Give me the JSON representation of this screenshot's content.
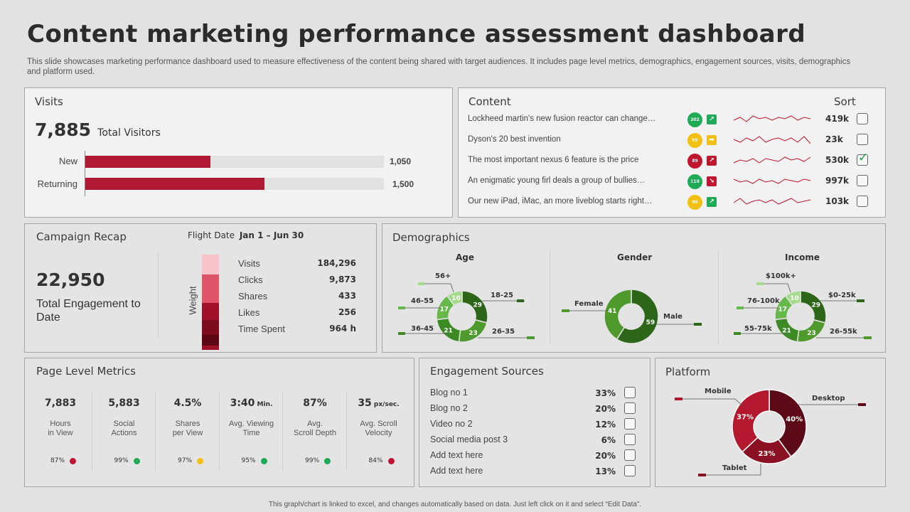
{
  "page": {
    "title": "Content marketing performance assessment dashboard",
    "subtitle": "This slide showcases marketing performance dashboard used to measure effectiveness of the content being shared with target audiences. It includes page level metrics, demographics, engagement sources, visits, demographics and platform used.",
    "footer": "This graph/chart is linked to excel, and changes automatically based on data. Just left click on it and select “Edit Data”."
  },
  "visits": {
    "title": "Visits",
    "total": "7,885",
    "total_label": "Total Visitors",
    "bars": [
      {
        "label": "New",
        "value": 1050,
        "display": "1,050"
      },
      {
        "label": "Returning",
        "value": 1500,
        "display": "1,500"
      }
    ],
    "max": 2500
  },
  "content": {
    "title": "Content",
    "sort_label": "Sort",
    "items": [
      {
        "title": "Lockheed martin's new fusion reactor can change…",
        "score": "202",
        "score_color": "#1faa57",
        "trend_icon": "arrow-up-right-icon",
        "trend_glyph": "↗",
        "trend_color": "#1faa57",
        "views": "419k",
        "checked": false,
        "spark": [
          4,
          6,
          3,
          7,
          5,
          6,
          4,
          6,
          5,
          7,
          4,
          6,
          5
        ]
      },
      {
        "title": "Dyson's 20 best invention",
        "score": "99",
        "score_color": "#f2c012",
        "trend_icon": "arrow-right-icon",
        "trend_glyph": "➡",
        "trend_color": "#f2c012",
        "views": "23k",
        "checked": false,
        "spark": [
          5,
          3,
          6,
          4,
          7,
          3,
          5,
          6,
          4,
          6,
          3,
          7,
          2
        ]
      },
      {
        "title": "The most important nexus 6 feature is the price",
        "score": "89",
        "score_color": "#c0152f",
        "trend_icon": "arrow-up-right-icon",
        "trend_glyph": "↗",
        "trend_color": "#c0152f",
        "views": "530k",
        "checked": true,
        "spark": [
          3,
          5,
          4,
          6,
          3,
          6,
          5,
          4,
          7,
          5,
          6,
          4,
          7
        ]
      },
      {
        "title": "An enigmatic young firl deals a group of bullies…",
        "score": "110",
        "score_color": "#1faa57",
        "trend_icon": "arrow-down-right-icon",
        "trend_glyph": "↘",
        "trend_color": "#c0152f",
        "views": "997k",
        "checked": false,
        "spark": [
          6,
          4,
          5,
          3,
          6,
          4,
          5,
          3,
          6,
          5,
          4,
          6,
          5
        ]
      },
      {
        "title": "Our new iPad, iMac, an more liveblog starts right…",
        "score": "99",
        "score_color": "#f2c012",
        "trend_icon": "arrow-up-right-icon",
        "trend_glyph": "↗",
        "trend_color": "#1faa57",
        "views": "103k",
        "checked": false,
        "spark": [
          4,
          7,
          3,
          5,
          6,
          4,
          6,
          3,
          5,
          7,
          4,
          5,
          6
        ]
      }
    ]
  },
  "campaign": {
    "title": "Campaign Recap",
    "total": "22,950",
    "total_label": "Total Engagement to Date",
    "flight_label": "Flight Date",
    "flight_range": "Jan 1 – Jun 30",
    "weight_label": "Weight",
    "rows": [
      {
        "label": "Visits",
        "value": "184,296",
        "color": "#f7c4cc"
      },
      {
        "label": "Clicks",
        "value": "9,873",
        "color": "#e05468"
      },
      {
        "label": "Shares",
        "value": "433",
        "color": "#a0122b"
      },
      {
        "label": "Likes",
        "value": "256",
        "color": "#7e0c20"
      },
      {
        "label": "Time Spent",
        "value": "964 h",
        "color": "#5c0616"
      }
    ]
  },
  "demographics": {
    "title": "Demographics",
    "age": {
      "title": "Age",
      "slices": [
        {
          "label": "18-25",
          "value": 29
        },
        {
          "label": "26-35",
          "value": 23
        },
        {
          "label": "36-45",
          "value": 21
        },
        {
          "label": "46-55",
          "value": 17
        },
        {
          "label": "56+",
          "value": 10
        }
      ]
    },
    "gender": {
      "title": "Gender",
      "slices": [
        {
          "label": "Male",
          "value": 59
        },
        {
          "label": "Female",
          "value": 41
        }
      ]
    },
    "income": {
      "title": "Income",
      "slices": [
        {
          "label": "$0-25k",
          "value": 29
        },
        {
          "label": "26-55k",
          "value": 23
        },
        {
          "label": "55-75k",
          "value": 21
        },
        {
          "label": "76-100k",
          "value": 17
        },
        {
          "label": "$100k+",
          "value": 10
        }
      ]
    },
    "greens": [
      "#2d6619",
      "#4f9a2c",
      "#3d8a25",
      "#67b84a",
      "#a6da8c"
    ]
  },
  "page_metrics": {
    "title": "Page Level Metrics",
    "items": [
      {
        "value": "7,883",
        "unit": "",
        "label1": "Hours",
        "label2": "in View",
        "pct": "87%",
        "dot": "#c0152f"
      },
      {
        "value": "5,883",
        "unit": "",
        "label1": "Social",
        "label2": "Actions",
        "pct": "99%",
        "dot": "#1faa57"
      },
      {
        "value": "4.5%",
        "unit": "",
        "label1": "Shares",
        "label2": "per View",
        "pct": "97%",
        "dot": "#f2c012"
      },
      {
        "value": "3:40",
        "unit": "Min.",
        "label1": "Avg. Viewing",
        "label2": "Time",
        "pct": "95%",
        "dot": "#1faa57"
      },
      {
        "value": "87%",
        "unit": "",
        "label1": "Avg.",
        "label2": "Scroll Depth",
        "pct": "99%",
        "dot": "#1faa57"
      },
      {
        "value": "35",
        "unit": "px/sec.",
        "label1": "Avg. Scroll",
        "label2": "Velocity",
        "pct": "84%",
        "dot": "#c0152f"
      }
    ]
  },
  "engagement": {
    "title": "Engagement Sources",
    "items": [
      {
        "label": "Blog no 1",
        "value": "33%"
      },
      {
        "label": "Blog no 2",
        "value": "20%"
      },
      {
        "label": "Video no 2",
        "value": "12%"
      },
      {
        "label": "Social media post 3",
        "value": "6%"
      },
      {
        "label": "Add text here",
        "value": "20%"
      },
      {
        "label": "Add text here",
        "value": "13%"
      }
    ]
  },
  "platform": {
    "title": "Platform",
    "slices": [
      {
        "label": "Desktop",
        "value": 40,
        "display": "40%",
        "color": "#5c0a17"
      },
      {
        "label": "Tablet",
        "value": 23,
        "display": "23%",
        "color": "#8a1024"
      },
      {
        "label": "Mobile",
        "value": 37,
        "display": "37%",
        "color": "#b4182f"
      }
    ]
  },
  "chart_data": [
    {
      "type": "bar",
      "title": "Visits",
      "categories": [
        "New",
        "Returning"
      ],
      "values": [
        1050,
        1500
      ]
    },
    {
      "type": "pie",
      "title": "Age",
      "categories": [
        "18-25",
        "26-35",
        "36-45",
        "46-55",
        "56+"
      ],
      "values": [
        29,
        23,
        21,
        17,
        10
      ]
    },
    {
      "type": "pie",
      "title": "Gender",
      "categories": [
        "Male",
        "Female"
      ],
      "values": [
        59,
        41
      ]
    },
    {
      "type": "pie",
      "title": "Income",
      "categories": [
        "$0-25k",
        "26-55k",
        "55-75k",
        "76-100k",
        "$100k+"
      ],
      "values": [
        29,
        23,
        21,
        17,
        10
      ]
    },
    {
      "type": "pie",
      "title": "Platform",
      "categories": [
        "Desktop",
        "Tablet",
        "Mobile"
      ],
      "values": [
        40,
        23,
        37
      ]
    }
  ]
}
